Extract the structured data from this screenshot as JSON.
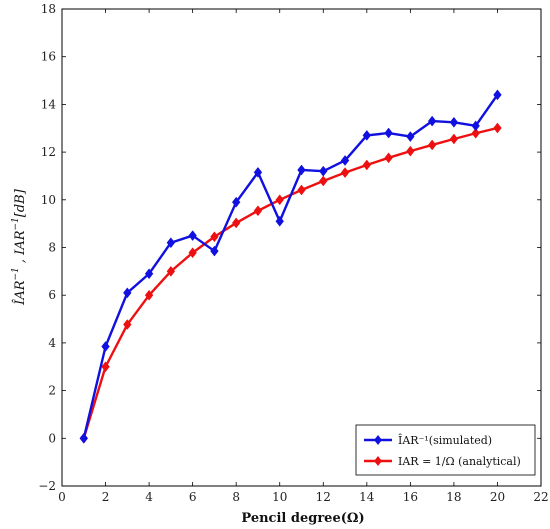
{
  "chart_data": {
    "type": "line",
    "xlabel": "Pencil   degree(Ω)",
    "ylabel": "IAR^-1 hat , IAR^-1 [dB]",
    "xlim": [
      0,
      22
    ],
    "ylim": [
      -2,
      18
    ],
    "x_ticks": [
      0,
      2,
      4,
      6,
      8,
      10,
      12,
      14,
      16,
      18,
      20,
      22
    ],
    "y_ticks": [
      -2,
      0,
      2,
      4,
      6,
      8,
      10,
      12,
      14,
      16,
      18
    ],
    "grid": false,
    "legend_position": "bottom-right",
    "series": [
      {
        "name": "ÎAR⁻¹(simulated)",
        "color": "#1010e0",
        "marker": "diamond",
        "x": [
          1,
          2,
          3,
          4,
          5,
          6,
          7,
          8,
          9,
          10,
          11,
          12,
          13,
          14,
          15,
          16,
          17,
          18,
          19,
          20
        ],
        "y": [
          0,
          3.85,
          6.1,
          6.9,
          8.2,
          8.5,
          7.85,
          9.9,
          11.15,
          9.1,
          11.25,
          11.2,
          11.65,
          12.7,
          12.8,
          12.65,
          13.3,
          13.25,
          13.1,
          14.4
        ]
      },
      {
        "name": "IAR = 1/Ω (analytical)",
        "color": "#ee1010",
        "marker": "diamond",
        "x": [
          1,
          2,
          3,
          4,
          5,
          6,
          7,
          8,
          9,
          10,
          11,
          12,
          13,
          14,
          15,
          16,
          17,
          18,
          19,
          20
        ],
        "y": [
          0,
          3.0,
          4.77,
          6.0,
          7.0,
          7.78,
          8.45,
          9.03,
          9.54,
          10.0,
          10.41,
          10.79,
          11.14,
          11.46,
          11.76,
          12.04,
          12.3,
          12.55,
          12.79,
          13.01
        ]
      }
    ]
  }
}
